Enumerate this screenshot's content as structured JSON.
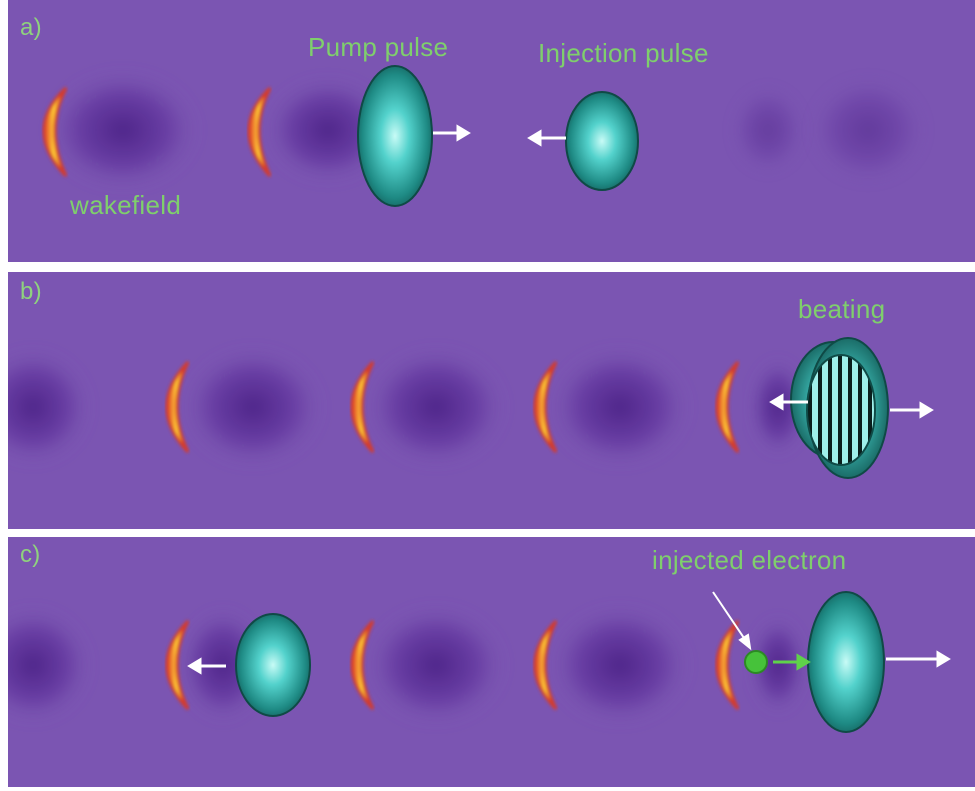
{
  "panels": [
    {
      "letter": "a)",
      "labels": {
        "pump": "Pump pulse",
        "injection": "Injection pulse",
        "wakefield": "wakefield"
      }
    },
    {
      "letter": "b)",
      "labels": {
        "beating": "beating"
      }
    },
    {
      "letter": "c)",
      "labels": {
        "electron": "injected electron"
      }
    }
  ],
  "colors": {
    "background": "#7b55b2",
    "wake_trough": "#4a1f86",
    "wake_front_outer": "#e03a2a",
    "wake_front_inner": "#ffd23a",
    "pulse_core": "#a8f4f0",
    "pulse_edge": "#17706a",
    "label": "#7fcf6c",
    "electron": "#46c23a",
    "arrow": "#ffffff"
  },
  "icons": [
    "crescent-wake-front",
    "ellipse-laser-pulse",
    "right-arrow",
    "left-arrow",
    "striped-beating-region",
    "green-electron-dot"
  ]
}
